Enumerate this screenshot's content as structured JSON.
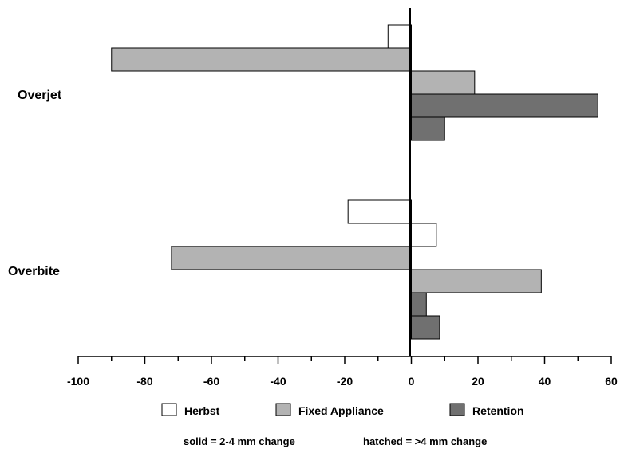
{
  "chart_data": {
    "type": "bar",
    "orientation": "horizontal",
    "categories": [
      "Overjet",
      "Overbite"
    ],
    "xlim": [
      -100,
      60
    ],
    "x_ticks": [
      "-100",
      "-80",
      "-60",
      "-40",
      "-20",
      "0",
      "20",
      "40",
      "60"
    ],
    "x_tick_values": [
      -100,
      -80,
      -60,
      -40,
      -20,
      0,
      20,
      40,
      60
    ],
    "grid": false,
    "legend_position": "bottom",
    "series": [
      {
        "name": "Herbst",
        "color": "#ffffff"
      },
      {
        "name": "Fixed Appliance",
        "color": "#b3b3b3"
      },
      {
        "name": "Retention",
        "color": "#707070"
      }
    ],
    "bars": [
      {
        "category": "Overjet",
        "series": "Herbst",
        "start": -7,
        "end": 0
      },
      {
        "category": "Overjet",
        "series": "Fixed Appliance",
        "start": -90,
        "end": 0
      },
      {
        "category": "Overjet",
        "series": "Fixed Appliance",
        "start": 0,
        "end": 19
      },
      {
        "category": "Overjet",
        "series": "Retention",
        "start": 0,
        "end": 56
      },
      {
        "category": "Overjet",
        "series": "Retention",
        "start": 0,
        "end": 10
      },
      {
        "category": "Overbite",
        "series": "Herbst",
        "start": -19,
        "end": 0
      },
      {
        "category": "Overbite",
        "series": "Herbst",
        "start": 0,
        "end": 7.5
      },
      {
        "category": "Overbite",
        "series": "Fixed Appliance",
        "start": -72,
        "end": 0
      },
      {
        "category": "Overbite",
        "series": "Fixed Appliance",
        "start": 0,
        "end": 39
      },
      {
        "category": "Overbite",
        "series": "Retention",
        "start": 0,
        "end": 4.5
      },
      {
        "category": "Overbite",
        "series": "Retention",
        "start": 0,
        "end": 8.5
      }
    ],
    "annotations": [
      "solid = 2-4 mm change",
      "hatched = >4 mm change"
    ]
  }
}
